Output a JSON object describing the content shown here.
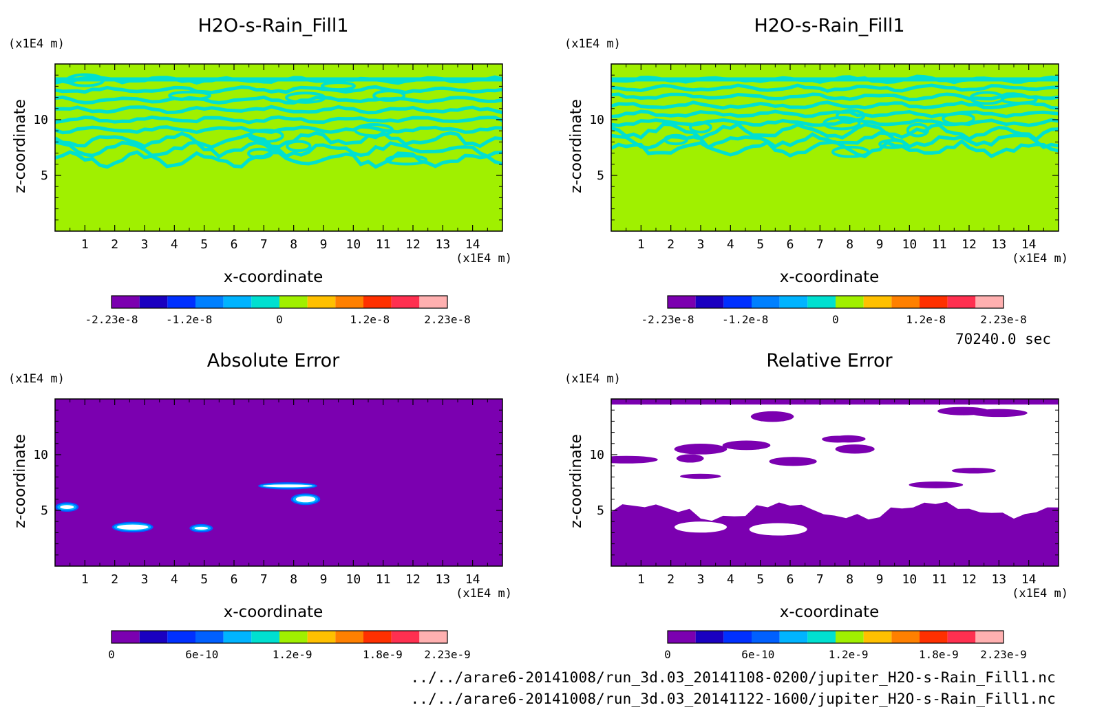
{
  "time_label": "70240.0 sec",
  "files": [
    "../../arare6-20141008/run_3d.03_20141108-0200/jupiter_H2O-s-Rain_Fill1.nc",
    "../../arare6-20141008/run_3d.03_20141122-1600/jupiter_H2O-s-Rain_Fill1.nc"
  ],
  "chart_data": [
    {
      "type": "heatmap",
      "title": "H2O-s-Rain_Fill1",
      "xlabel": "x-coordinate",
      "ylabel": "z-coordinate",
      "x_unit": "(x1E4 m)",
      "y_unit": "(x1E4 m)",
      "xlim": [
        0,
        15
      ],
      "ylim": [
        0,
        15
      ],
      "xticks": [
        1,
        2,
        3,
        4,
        5,
        6,
        7,
        8,
        9,
        10,
        11,
        12,
        13,
        14
      ],
      "yticks": [
        5,
        10
      ],
      "colorbar": {
        "colors": [
          "#7b00b0",
          "#1a00c0",
          "#0030ff",
          "#0080ff",
          "#00b4ff",
          "#00e0d0",
          "#a0f000",
          "#ffc000",
          "#ff8000",
          "#ff3000",
          "#ff3050",
          "#ffb0b0"
        ],
        "tick_labels": [
          "-2.23e-8",
          "-1.2e-8",
          "0",
          "1.2e-8",
          "2.23e-8"
        ],
        "tick_values": [
          -2.23e-08,
          -1.2e-08,
          0,
          1.2e-08,
          2.23e-08
        ],
        "range": [
          -2.23e-08,
          2.23e-08
        ]
      },
      "background": "#a0f000",
      "band_color": "#00e0d0",
      "band_z_range": [
        6,
        14
      ]
    },
    {
      "type": "heatmap",
      "title": "H2O-s-Rain_Fill1",
      "xlabel": "x-coordinate",
      "ylabel": "z-coordinate",
      "x_unit": "(x1E4 m)",
      "y_unit": "(x1E4 m)",
      "xlim": [
        0,
        15
      ],
      "ylim": [
        0,
        15
      ],
      "xticks": [
        1,
        2,
        3,
        4,
        5,
        6,
        7,
        8,
        9,
        10,
        11,
        12,
        13,
        14
      ],
      "yticks": [
        5,
        10
      ],
      "colorbar": {
        "colors": [
          "#7b00b0",
          "#1a00c0",
          "#0030ff",
          "#0080ff",
          "#00b4ff",
          "#00e0d0",
          "#a0f000",
          "#ffc000",
          "#ff8000",
          "#ff3000",
          "#ff3050",
          "#ffb0b0"
        ],
        "tick_labels": [
          "-2.23e-8",
          "-1.2e-8",
          "0",
          "1.2e-8",
          "2.23e-8"
        ],
        "tick_values": [
          -2.23e-08,
          -1.2e-08,
          0,
          1.2e-08,
          2.23e-08
        ],
        "range": [
          -2.23e-08,
          2.23e-08
        ]
      },
      "background": "#a0f000",
      "band_color": "#00e0d0",
      "band_z_range": [
        7,
        14
      ]
    },
    {
      "type": "heatmap",
      "title": "Absolute Error",
      "xlabel": "x-coordinate",
      "ylabel": "z-coordinate",
      "x_unit": "(x1E4 m)",
      "y_unit": "(x1E4 m)",
      "xlim": [
        0,
        15
      ],
      "ylim": [
        0,
        15
      ],
      "xticks": [
        1,
        2,
        3,
        4,
        5,
        6,
        7,
        8,
        9,
        10,
        11,
        12,
        13,
        14
      ],
      "yticks": [
        5,
        10
      ],
      "colorbar": {
        "colors": [
          "#7b00b0",
          "#1a00c0",
          "#0030ff",
          "#0060ff",
          "#00b4ff",
          "#00e0d0",
          "#a0f000",
          "#ffc000",
          "#ff8000",
          "#ff3000",
          "#ff3050",
          "#ffb0b0"
        ],
        "tick_labels": [
          "0",
          "6e-10",
          "1.2e-9",
          "1.8e-9",
          "2.23e-9"
        ],
        "tick_values": [
          0,
          6e-10,
          1.2e-09,
          1.8e-09,
          2.23e-09
        ],
        "range": [
          0,
          2.23e-09
        ]
      },
      "background": "#7b00b0",
      "blobs": [
        {
          "x": 0.4,
          "z": 5.3,
          "rx": 0.3,
          "rz": 0.3
        },
        {
          "x": 2.6,
          "z": 3.5,
          "rx": 0.6,
          "rz": 0.35
        },
        {
          "x": 4.9,
          "z": 3.4,
          "rx": 0.3,
          "rz": 0.25
        },
        {
          "x": 7.8,
          "z": 7.2,
          "rx": 0.9,
          "rz": 0.2
        },
        {
          "x": 8.4,
          "z": 6.0,
          "rx": 0.4,
          "rz": 0.4
        }
      ]
    },
    {
      "type": "heatmap",
      "title": "Relative Error",
      "xlabel": "x-coordinate",
      "ylabel": "z-coordinate",
      "x_unit": "(x1E4 m)",
      "y_unit": "(x1E4 m)",
      "xlim": [
        0,
        15
      ],
      "ylim": [
        0,
        15
      ],
      "xticks": [
        1,
        2,
        3,
        4,
        5,
        6,
        7,
        8,
        9,
        10,
        11,
        12,
        13,
        14
      ],
      "yticks": [
        5,
        10
      ],
      "colorbar": {
        "colors": [
          "#7b00b0",
          "#1a00c0",
          "#0030ff",
          "#0060ff",
          "#00b4ff",
          "#00e0d0",
          "#a0f000",
          "#ffc000",
          "#ff8000",
          "#ff3000",
          "#ff3050",
          "#ffb0b0"
        ],
        "tick_labels": [
          "0",
          "6e-10",
          "1.2e-9",
          "1.8e-9",
          "2.23e-9"
        ],
        "tick_values": [
          0,
          6e-10,
          1.2e-09,
          1.8e-09,
          2.23e-09
        ],
        "range": [
          0,
          2.23e-09
        ]
      },
      "background": "#7b00b0",
      "white_region_z": [
        5,
        14.5
      ]
    }
  ]
}
